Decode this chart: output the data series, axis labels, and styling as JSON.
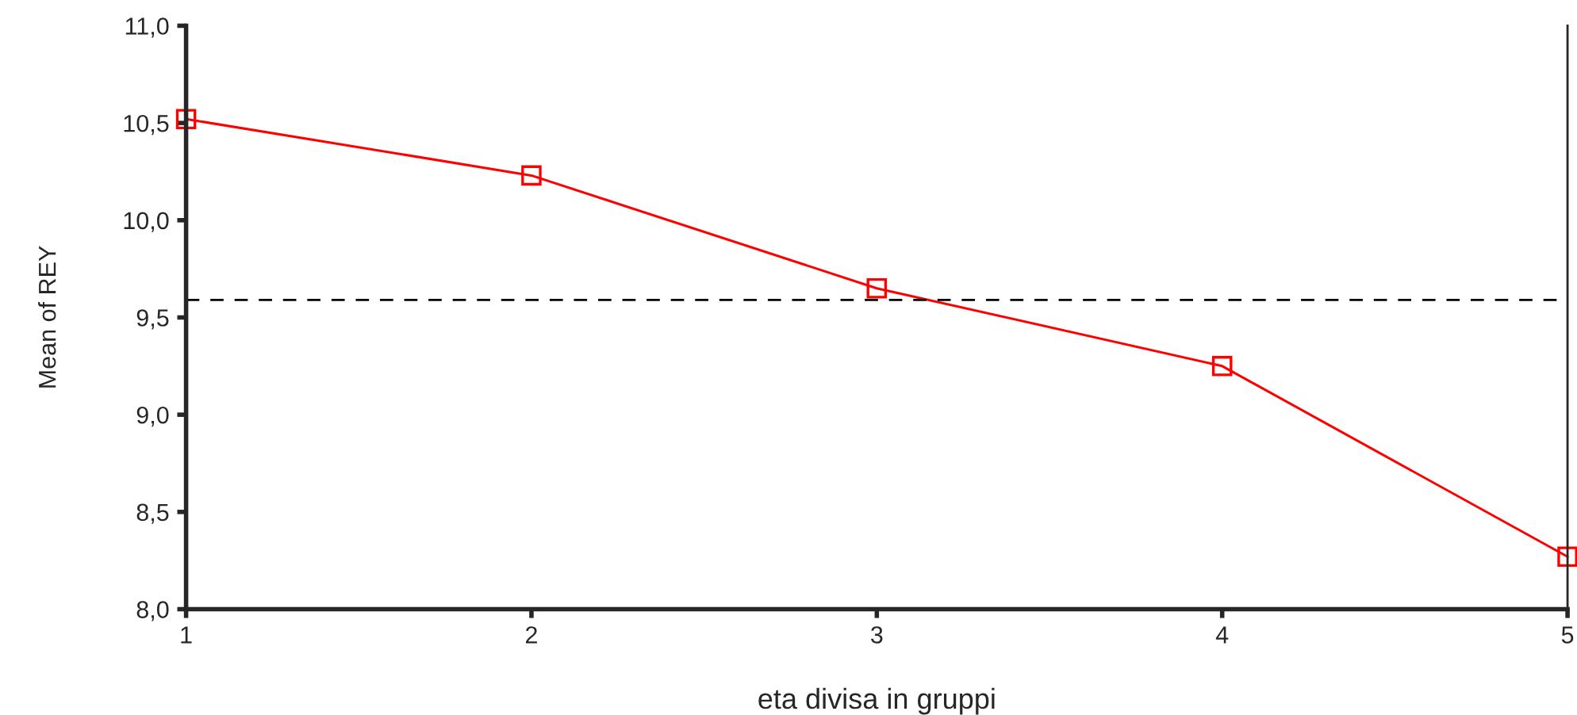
{
  "chart_data": {
    "type": "line",
    "xlabel": "eta divisa in gruppi",
    "ylabel": "Mean of REY",
    "x": [
      1,
      2,
      3,
      4,
      5
    ],
    "series": [
      {
        "color": "#ff0000",
        "values": [
          10.52,
          10.23,
          9.65,
          9.25,
          8.27
        ]
      }
    ],
    "xlim": [
      1,
      5
    ],
    "xticks": [
      1,
      2,
      3,
      4,
      5
    ],
    "ylim": [
      8.0,
      11.0
    ],
    "yticks": [
      {
        "value": 8.0,
        "label": "8,0"
      },
      {
        "value": 8.5,
        "label": "8,5"
      },
      {
        "value": 9.0,
        "label": "9,0"
      },
      {
        "value": 9.5,
        "label": "9,5"
      },
      {
        "value": 10.0,
        "label": "10,0"
      },
      {
        "value": 10.5,
        "label": "10,5"
      },
      {
        "value": 11.0,
        "label": "11,0"
      }
    ],
    "ref_lines": [
      {
        "axis": "y",
        "value": 9.59,
        "color": "#000000",
        "line_style": "dashed"
      }
    ],
    "marker": "square",
    "line_style": "solid",
    "grid": false,
    "legend": false
  }
}
